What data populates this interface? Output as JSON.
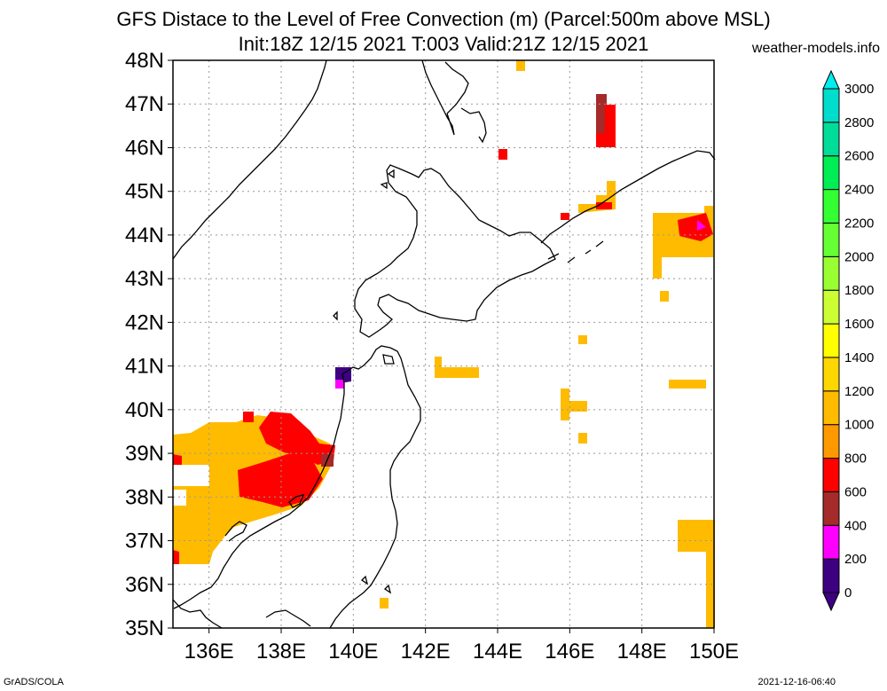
{
  "title_line1": "GFS Distace to the Level of Free Convection (m) (Parcel:500m above MSL)",
  "title_line2": "Init:18Z 12/15 2021 T:003 Valid:21Z 12/15 2021",
  "site": "weather-models.info",
  "footer_left": "GrADS/COLA",
  "footer_right": "2021-12-16-06:40",
  "map": {
    "lon_range": [
      135,
      150
    ],
    "lat_range": [
      35,
      48
    ],
    "lat_labels": [
      "35N",
      "36N",
      "37N",
      "38N",
      "39N",
      "40N",
      "41N",
      "42N",
      "43N",
      "44N",
      "45N",
      "46N",
      "47N",
      "48N"
    ],
    "lon_labels": [
      "136E",
      "138E",
      "140E",
      "142E",
      "144E",
      "146E",
      "148E",
      "150E"
    ],
    "grid": true,
    "coastline_color": "#000000"
  },
  "colorbar": {
    "levels": [
      "0",
      "200",
      "400",
      "600",
      "800",
      "1000",
      "1200",
      "1400",
      "1600",
      "1800",
      "2000",
      "2200",
      "2400",
      "2600",
      "2800",
      "3000"
    ],
    "colors": [
      "#3d0080",
      "#ff00ff",
      "#a52a2a",
      "#ff0000",
      "#ff9900",
      "#ffbb00",
      "#ffd700",
      "#ffff00",
      "#ccff33",
      "#99ff33",
      "#66ff33",
      "#33ff33",
      "#00ee55",
      "#00dd99",
      "#00ddcc",
      "#00eeff"
    ],
    "below_color": "#3d0080",
    "above_color": "#00eeee"
  }
}
